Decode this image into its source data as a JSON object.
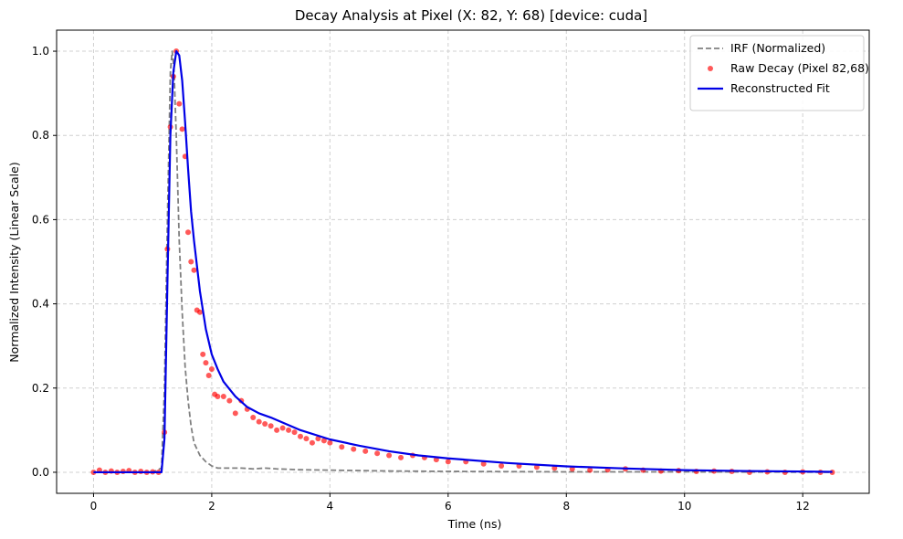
{
  "chart_data": {
    "type": "line",
    "title": "Decay Analysis at Pixel (X: 82, Y: 68)  [device: cuda]",
    "xlabel": "Time (ns)",
    "ylabel": "Normalized Intensity (Linear Scale)",
    "xlim": [
      -0.625,
      13.125
    ],
    "ylim": [
      -0.05,
      1.05
    ],
    "xticks": [
      0,
      2,
      4,
      6,
      8,
      10,
      12
    ],
    "yticks": [
      0.0,
      0.2,
      0.4,
      0.6,
      0.8,
      1.0
    ],
    "xtick_labels": [
      "0",
      "2",
      "4",
      "6",
      "8",
      "10",
      "12"
    ],
    "ytick_labels": [
      "0.0",
      "0.2",
      "0.4",
      "0.6",
      "0.8",
      "1.0"
    ],
    "grid": true,
    "legend_position": "top-right",
    "legend": [
      "IRF (Normalized)",
      "Raw Decay (Pixel 82,68)",
      "Reconstructed Fit"
    ],
    "series": [
      {
        "name": "IRF (Normalized)",
        "style": "dashed-line",
        "color": "#808080",
        "x": [
          0,
          1.0,
          1.15,
          1.2,
          1.25,
          1.3,
          1.33,
          1.36,
          1.4,
          1.45,
          1.5,
          1.55,
          1.6,
          1.65,
          1.7,
          1.8,
          1.9,
          2.0,
          2.1,
          2.2,
          2.5,
          2.7,
          2.9,
          3.1,
          3.5,
          4.0,
          5.0,
          6.0,
          8.0,
          10.0,
          12.5
        ],
        "y": [
          0,
          0,
          0.01,
          0.2,
          0.6,
          0.95,
          1.0,
          0.96,
          0.8,
          0.55,
          0.38,
          0.25,
          0.17,
          0.11,
          0.07,
          0.04,
          0.025,
          0.015,
          0.01,
          0.01,
          0.01,
          0.008,
          0.01,
          0.008,
          0.006,
          0.005,
          0.003,
          0.002,
          0.001,
          0.001,
          0.0
        ]
      },
      {
        "name": "Raw Decay (Pixel 82,68)",
        "style": "markers",
        "color": "#ff0000",
        "x": [
          0,
          0.1,
          0.2,
          0.3,
          0.4,
          0.5,
          0.6,
          0.7,
          0.8,
          0.9,
          1.0,
          1.1,
          1.2,
          1.25,
          1.3,
          1.35,
          1.4,
          1.45,
          1.5,
          1.55,
          1.6,
          1.65,
          1.7,
          1.75,
          1.8,
          1.85,
          1.9,
          1.95,
          2.0,
          2.05,
          2.1,
          2.2,
          2.3,
          2.4,
          2.5,
          2.6,
          2.7,
          2.8,
          2.9,
          3.0,
          3.1,
          3.2,
          3.3,
          3.4,
          3.5,
          3.6,
          3.7,
          3.8,
          3.9,
          4.0,
          4.2,
          4.4,
          4.6,
          4.8,
          5.0,
          5.2,
          5.4,
          5.6,
          5.8,
          6.0,
          6.3,
          6.6,
          6.9,
          7.2,
          7.5,
          7.8,
          8.1,
          8.4,
          8.7,
          9.0,
          9.3,
          9.6,
          9.9,
          10.2,
          10.5,
          10.8,
          11.1,
          11.4,
          11.7,
          12.0,
          12.3,
          12.5
        ],
        "y": [
          0.0,
          0.005,
          0.0,
          0.003,
          0.0,
          0.002,
          0.004,
          0.0,
          0.002,
          0.0,
          0.001,
          0.0,
          0.095,
          0.53,
          0.82,
          0.94,
          1.0,
          0.875,
          0.815,
          0.75,
          0.57,
          0.5,
          0.48,
          0.385,
          0.38,
          0.28,
          0.26,
          0.23,
          0.245,
          0.185,
          0.18,
          0.18,
          0.17,
          0.14,
          0.17,
          0.15,
          0.13,
          0.12,
          0.115,
          0.11,
          0.1,
          0.105,
          0.1,
          0.095,
          0.085,
          0.08,
          0.07,
          0.08,
          0.075,
          0.07,
          0.06,
          0.055,
          0.05,
          0.045,
          0.04,
          0.035,
          0.04,
          0.035,
          0.03,
          0.025,
          0.025,
          0.02,
          0.015,
          0.015,
          0.012,
          0.01,
          0.008,
          0.005,
          0.006,
          0.008,
          0.005,
          0.003,
          0.004,
          0.002,
          0.003,
          0.002,
          0.0,
          0.001,
          0.0,
          0.001,
          0.0,
          0.0
        ]
      },
      {
        "name": "Reconstructed Fit",
        "style": "solid-line",
        "color": "#0000e6",
        "x": [
          0,
          1.15,
          1.2,
          1.25,
          1.3,
          1.35,
          1.4,
          1.45,
          1.5,
          1.55,
          1.6,
          1.65,
          1.7,
          1.75,
          1.8,
          1.9,
          2.0,
          2.1,
          2.2,
          2.4,
          2.6,
          2.8,
          3.0,
          3.5,
          4.0,
          4.5,
          5.0,
          5.5,
          6.0,
          7.0,
          8.0,
          9.0,
          10.0,
          11.0,
          12.5
        ],
        "y": [
          0,
          0.0,
          0.08,
          0.45,
          0.8,
          0.95,
          1.0,
          0.99,
          0.93,
          0.83,
          0.72,
          0.62,
          0.55,
          0.49,
          0.43,
          0.34,
          0.28,
          0.245,
          0.215,
          0.18,
          0.155,
          0.14,
          0.13,
          0.1,
          0.078,
          0.063,
          0.05,
          0.04,
          0.033,
          0.022,
          0.014,
          0.009,
          0.005,
          0.003,
          0.001
        ]
      }
    ]
  }
}
